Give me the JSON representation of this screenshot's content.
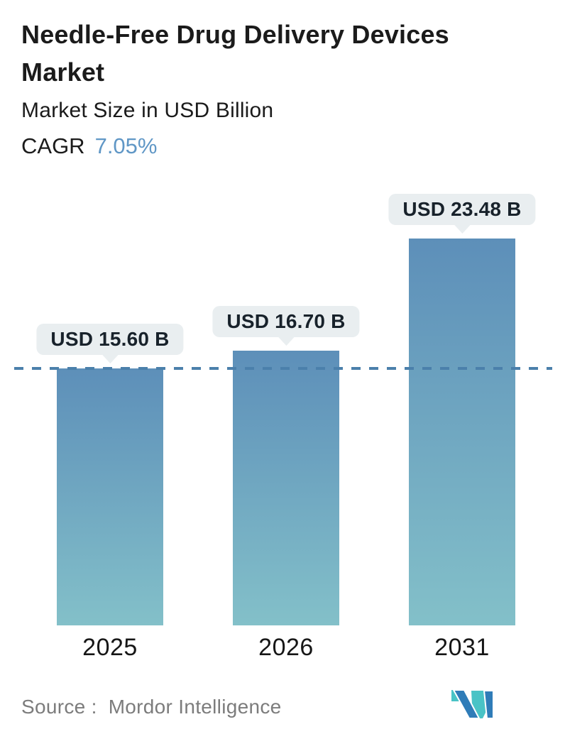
{
  "header": {
    "title": "Needle-Free Drug Delivery Devices Market",
    "subtitle": "Market Size in USD Billion",
    "cagr_label": "CAGR",
    "cagr_value": "7.05%"
  },
  "chart_data": {
    "type": "bar",
    "title": "Needle-Free Drug Delivery Devices Market",
    "ylabel": "Market Size in USD Billion",
    "categories": [
      "2025",
      "2026",
      "2031"
    ],
    "values": [
      15.6,
      16.7,
      23.48
    ],
    "value_labels": [
      "USD 15.60 B",
      "USD 16.70 B",
      "USD 23.48 B"
    ],
    "cagr_percent": 7.05,
    "reference_line_value": 15.6,
    "ylim": [
      0,
      25
    ],
    "grid": "off",
    "legend": "none",
    "colors": {
      "bar_gradient_top": "#5d8fb9",
      "bar_gradient_bottom": "#83c0c9",
      "dashed_line": "#4b80ab",
      "badge_background": "#e9eef0",
      "badge_text": "#18222b",
      "accent_blue": "#6097c6"
    }
  },
  "footer": {
    "source_label": "Source :",
    "source_value": "Mordor Intelligence",
    "logo": "mordor-intelligence-logo",
    "logo_colors": {
      "teal": "#49c3c6",
      "blue": "#2f7cb8"
    }
  }
}
